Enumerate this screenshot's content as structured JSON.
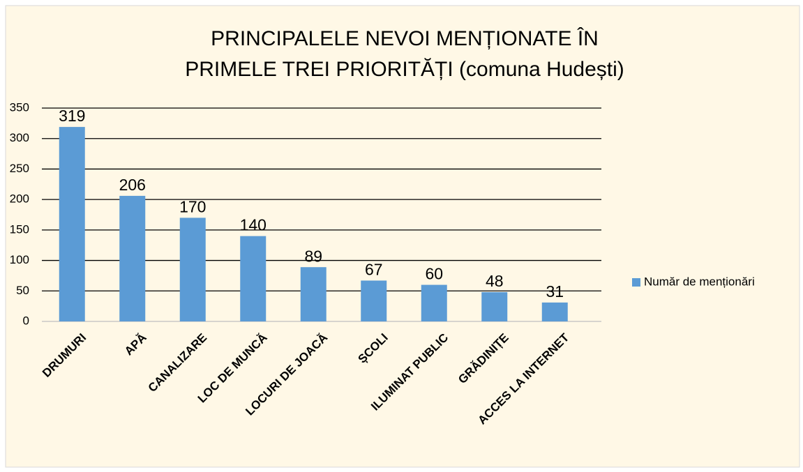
{
  "chart_data": {
    "type": "bar",
    "title": [
      "PRINCIPALELE NEVOI MENȚIONATE ÎN",
      "PRIMELE TREI PRIORITĂȚI (comuna Hudești)"
    ],
    "categories": [
      "DRUMURI",
      "APĂ",
      "CANALIZARE",
      "LOC DE MUNCĂ",
      "LOCURI DE JOACĂ",
      "ȘCOLI",
      "ILUMINAT PUBLIC",
      "GRĂDINIȚE",
      "ACCES LA INTERNET"
    ],
    "series": [
      {
        "name": "Număr de menționări",
        "color": "#5b9bd5",
        "values": [
          319,
          206,
          170,
          140,
          89,
          67,
          60,
          48,
          31
        ]
      }
    ],
    "ylim": [
      0,
      350
    ],
    "yticks": [
      0,
      50,
      100,
      150,
      200,
      250,
      300,
      350
    ],
    "grid": true,
    "legend": "right"
  }
}
